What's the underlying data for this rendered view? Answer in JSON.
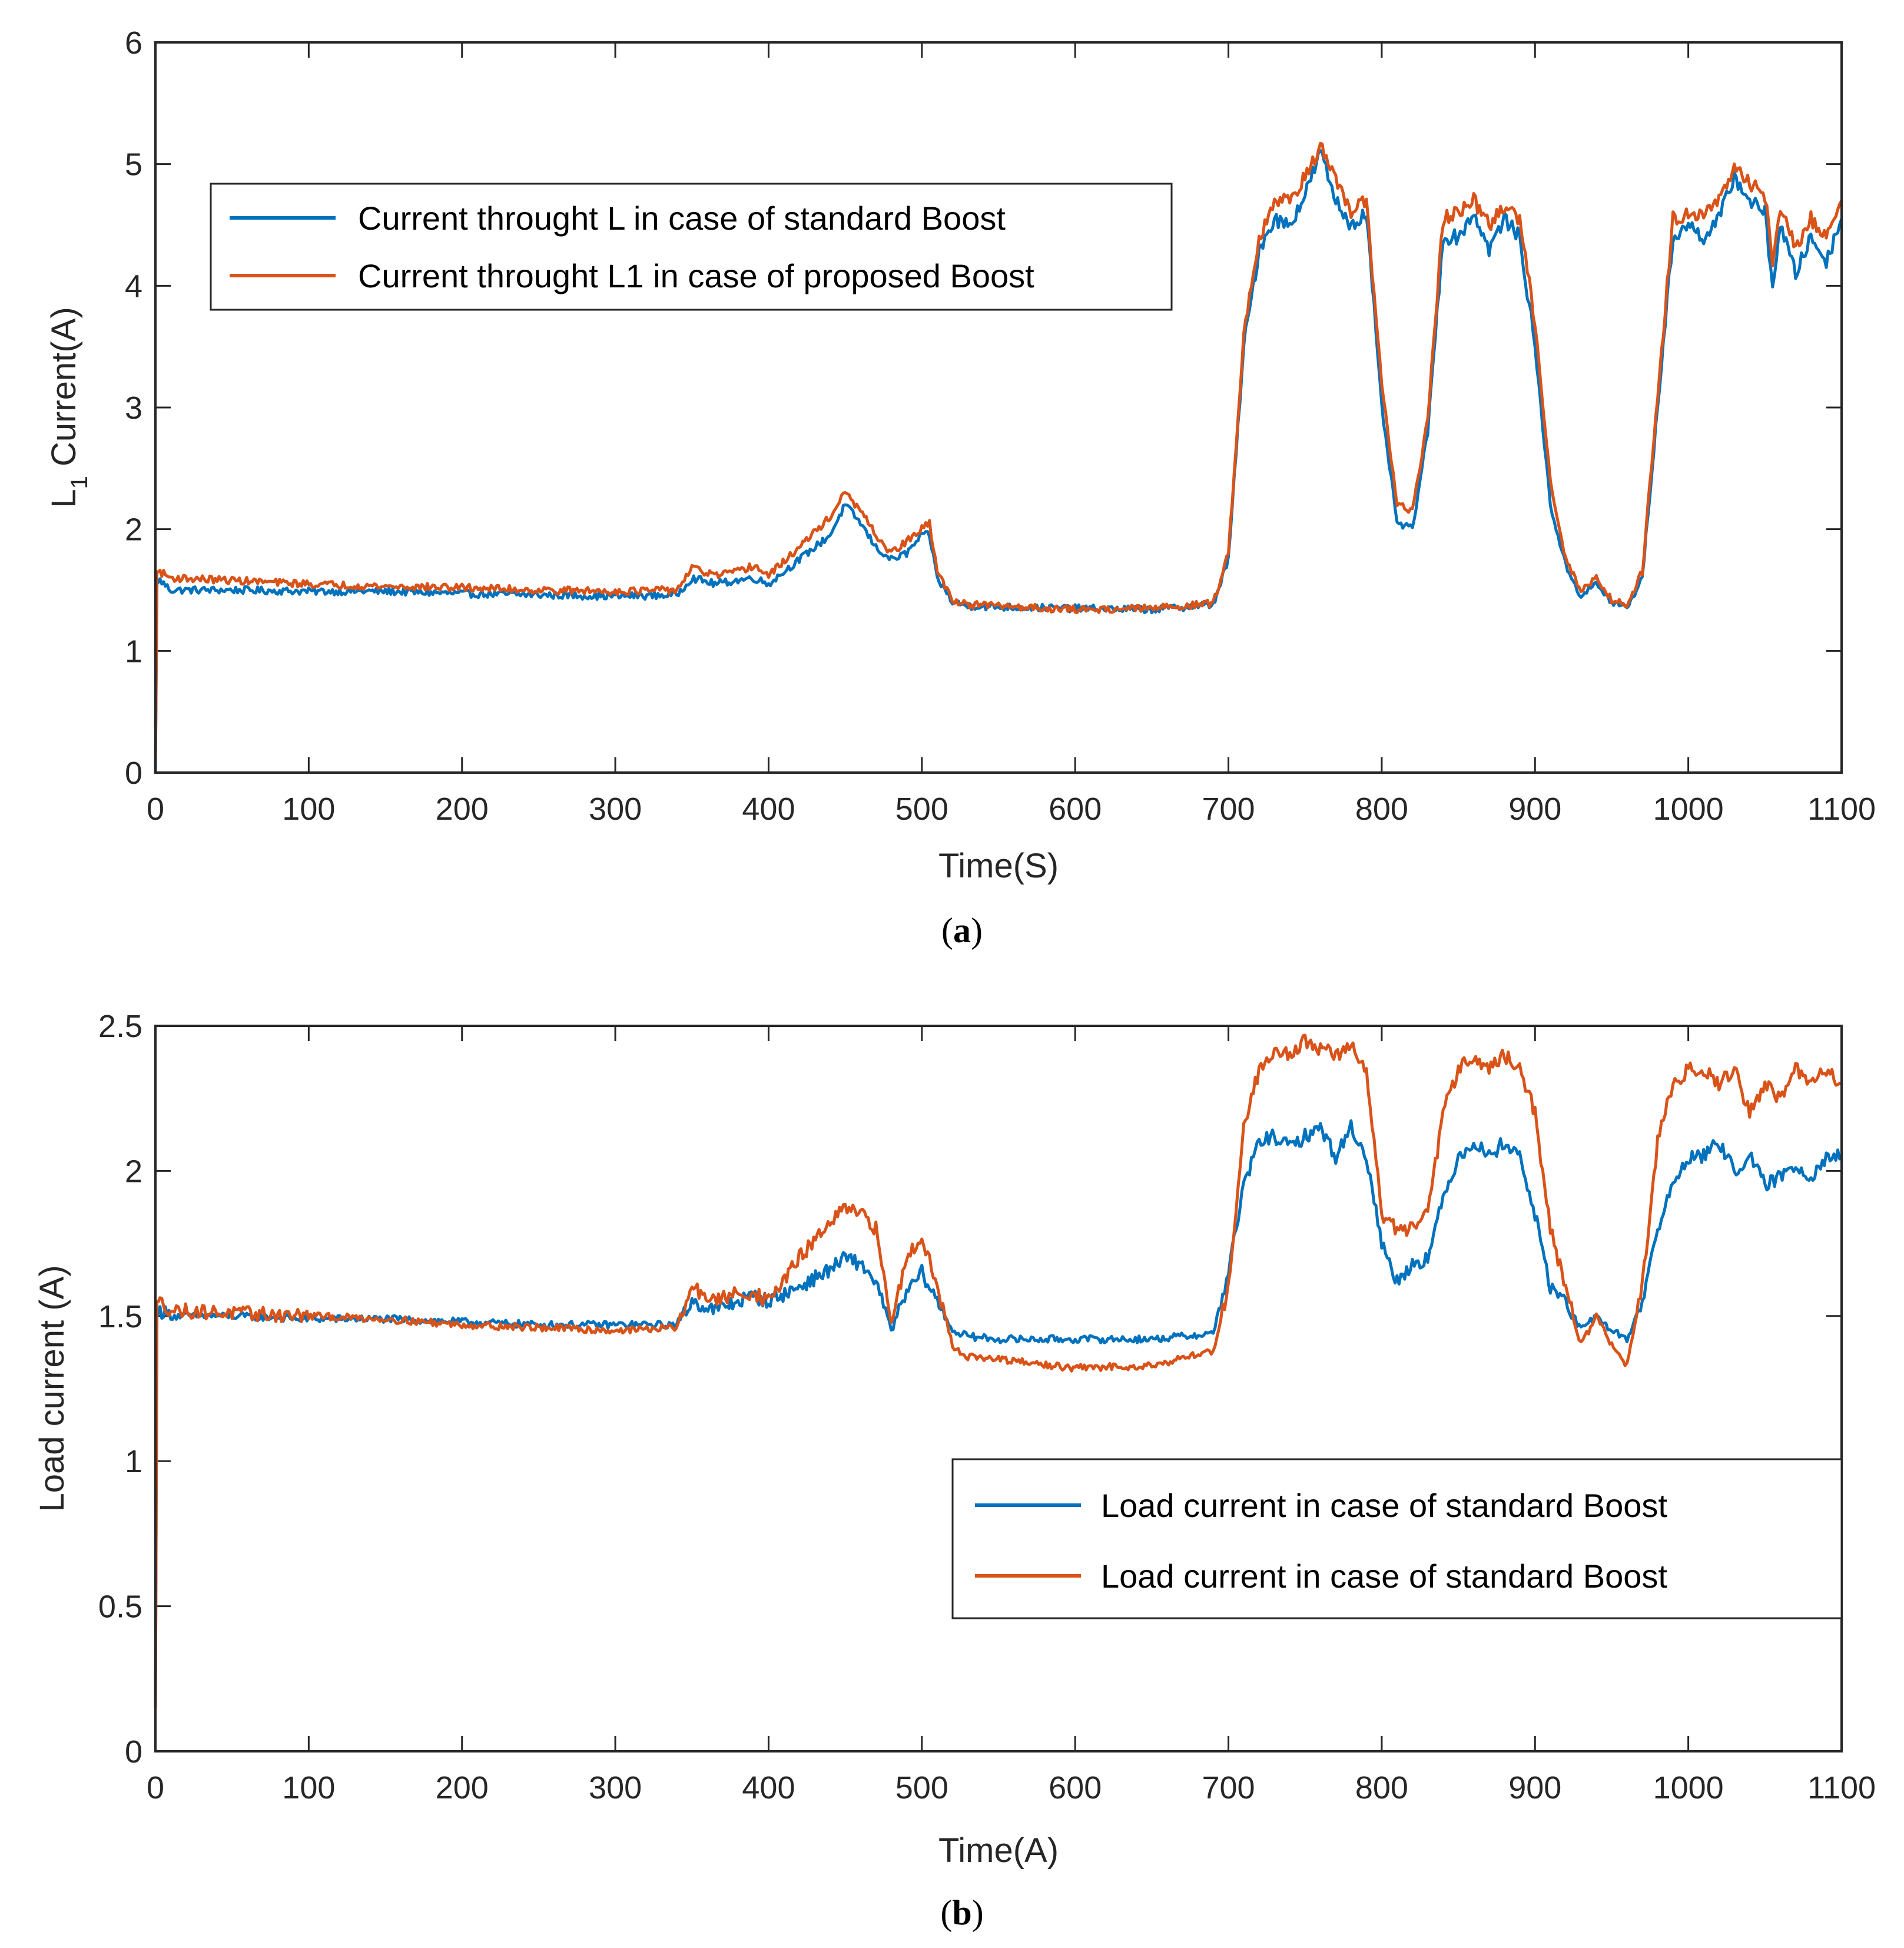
{
  "chart_data": [
    {
      "type": "line",
      "panel": "a",
      "caption_open": "(",
      "caption": "a",
      "caption_close": ")",
      "xlabel": "Time(S)",
      "ylabel_main": "L",
      "ylabel_sub": "1",
      "ylabel_rest": " Current(A)",
      "xlim": [
        0,
        1100
      ],
      "ylim": [
        0,
        6
      ],
      "xticks": [
        0,
        100,
        200,
        300,
        400,
        500,
        600,
        700,
        800,
        900,
        1000,
        1100
      ],
      "yticks": [
        0,
        1,
        2,
        3,
        4,
        5,
        6
      ],
      "legend_position": "top-left",
      "series": [
        {
          "name": "Current throught L in case of standard Boost",
          "color": "#0072BD",
          "x": [
            0,
            1,
            3,
            10,
            50,
            100,
            150,
            200,
            250,
            300,
            340,
            350,
            365,
            380,
            390,
            400,
            420,
            440,
            450,
            460,
            470,
            480,
            490,
            500,
            505,
            510,
            520,
            530,
            550,
            600,
            650,
            690,
            700,
            710,
            720,
            730,
            740,
            750,
            760,
            770,
            780,
            790,
            800,
            810,
            820,
            830,
            840,
            850,
            860,
            870,
            880,
            890,
            900,
            910,
            920,
            930,
            940,
            950,
            960,
            970,
            980,
            990,
            1000,
            1010,
            1020,
            1030,
            1040,
            1050,
            1055,
            1060,
            1070,
            1080,
            1090,
            1100
          ],
          "y": [
            0,
            1.55,
            1.58,
            1.5,
            1.5,
            1.49,
            1.49,
            1.47,
            1.46,
            1.45,
            1.46,
            1.6,
            1.55,
            1.58,
            1.6,
            1.55,
            1.75,
            1.95,
            2.2,
            2.05,
            1.85,
            1.75,
            1.8,
            1.95,
            1.95,
            1.6,
            1.4,
            1.37,
            1.36,
            1.35,
            1.34,
            1.38,
            1.75,
            3.5,
            4.3,
            4.55,
            4.5,
            4.75,
            5.1,
            4.7,
            4.5,
            4.6,
            3.0,
            2.05,
            2.0,
            2.8,
            4.4,
            4.4,
            4.6,
            4.3,
            4.55,
            4.4,
            3.5,
            2.2,
            1.7,
            1.45,
            1.55,
            1.4,
            1.35,
            1.6,
            3.0,
            4.4,
            4.5,
            4.4,
            4.55,
            4.9,
            4.7,
            4.6,
            4.0,
            4.5,
            4.1,
            4.4,
            4.2,
            4.55
          ]
        },
        {
          "name": "Current throught L1 in case of proposed Boost",
          "color": "#D95319",
          "x": [
            0,
            1,
            3,
            10,
            50,
            100,
            150,
            200,
            250,
            300,
            340,
            350,
            365,
            380,
            390,
            400,
            420,
            440,
            450,
            460,
            470,
            480,
            490,
            500,
            505,
            510,
            520,
            530,
            550,
            600,
            650,
            690,
            700,
            710,
            720,
            730,
            740,
            750,
            760,
            770,
            780,
            790,
            800,
            810,
            820,
            830,
            840,
            850,
            860,
            870,
            880,
            890,
            900,
            910,
            920,
            930,
            940,
            950,
            960,
            970,
            980,
            990,
            1000,
            1010,
            1020,
            1030,
            1040,
            1050,
            1055,
            1060,
            1070,
            1080,
            1090,
            1100
          ],
          "y": [
            0.1,
            1.65,
            1.65,
            1.6,
            1.58,
            1.55,
            1.53,
            1.52,
            1.5,
            1.49,
            1.5,
            1.68,
            1.62,
            1.65,
            1.7,
            1.62,
            1.85,
            2.1,
            2.3,
            2.15,
            1.95,
            1.8,
            1.9,
            2.0,
            2.05,
            1.65,
            1.42,
            1.38,
            1.37,
            1.34,
            1.35,
            1.39,
            1.8,
            3.6,
            4.4,
            4.7,
            4.7,
            4.9,
            5.15,
            4.85,
            4.6,
            4.7,
            3.2,
            2.2,
            2.15,
            2.9,
            4.55,
            4.6,
            4.7,
            4.5,
            4.65,
            4.55,
            3.7,
            2.4,
            1.75,
            1.5,
            1.6,
            1.42,
            1.38,
            1.65,
            3.1,
            4.55,
            4.6,
            4.6,
            4.7,
            4.95,
            4.85,
            4.75,
            4.2,
            4.65,
            4.3,
            4.55,
            4.4,
            4.7
          ]
        }
      ]
    },
    {
      "type": "line",
      "panel": "b",
      "caption_open": "(",
      "caption": "b",
      "caption_close": ")",
      "xlabel": "Time(A)",
      "ylabel": "Load current (A)",
      "xlim": [
        0,
        1100
      ],
      "ylim": [
        0,
        2.5
      ],
      "xticks": [
        0,
        100,
        200,
        300,
        400,
        500,
        600,
        700,
        800,
        900,
        1000,
        1100
      ],
      "yticks": [
        0,
        0.5,
        1,
        1.5,
        2,
        2.5
      ],
      "legend_position": "bottom-right",
      "series": [
        {
          "name": "Load current in case of standard Boost",
          "color": "#0072BD",
          "x": [
            0,
            1,
            3,
            10,
            50,
            100,
            150,
            200,
            250,
            300,
            340,
            350,
            365,
            380,
            390,
            400,
            420,
            440,
            450,
            460,
            470,
            480,
            490,
            500,
            510,
            520,
            530,
            550,
            600,
            650,
            690,
            700,
            710,
            720,
            730,
            740,
            750,
            760,
            770,
            780,
            790,
            800,
            810,
            820,
            830,
            840,
            850,
            860,
            870,
            880,
            890,
            900,
            910,
            920,
            930,
            940,
            950,
            960,
            970,
            980,
            990,
            1000,
            1010,
            1020,
            1030,
            1040,
            1050,
            1060,
            1070,
            1080,
            1090,
            1100
          ],
          "y": [
            0.15,
            1.5,
            1.52,
            1.5,
            1.5,
            1.49,
            1.49,
            1.48,
            1.47,
            1.47,
            1.47,
            1.55,
            1.52,
            1.55,
            1.57,
            1.55,
            1.6,
            1.66,
            1.7,
            1.68,
            1.62,
            1.45,
            1.58,
            1.65,
            1.55,
            1.45,
            1.43,
            1.42,
            1.42,
            1.42,
            1.44,
            1.65,
            1.95,
            2.1,
            2.12,
            2.08,
            2.12,
            2.15,
            2.05,
            2.15,
            2.05,
            1.75,
            1.62,
            1.68,
            1.7,
            1.9,
            2.05,
            2.1,
            2.05,
            2.1,
            2.05,
            1.85,
            1.6,
            1.55,
            1.45,
            1.5,
            1.45,
            1.42,
            1.55,
            1.8,
            1.95,
            2.05,
            2.05,
            2.1,
            2.0,
            2.05,
            1.95,
            1.98,
            2.02,
            1.98,
            2.05,
            2.05
          ]
        },
        {
          "name": "Load current in case of standard Boost",
          "color": "#D95319",
          "x": [
            0,
            1,
            3,
            10,
            50,
            100,
            150,
            200,
            250,
            300,
            340,
            350,
            365,
            380,
            390,
            400,
            420,
            440,
            450,
            460,
            470,
            480,
            490,
            500,
            510,
            520,
            530,
            550,
            600,
            650,
            690,
            700,
            710,
            720,
            730,
            740,
            750,
            760,
            770,
            780,
            790,
            800,
            810,
            820,
            830,
            840,
            850,
            860,
            870,
            880,
            890,
            900,
            910,
            920,
            930,
            940,
            950,
            960,
            970,
            980,
            990,
            1000,
            1010,
            1020,
            1030,
            1040,
            1050,
            1060,
            1070,
            1080,
            1090,
            1100
          ],
          "y": [
            0.15,
            1.55,
            1.55,
            1.52,
            1.51,
            1.5,
            1.49,
            1.47,
            1.46,
            1.45,
            1.46,
            1.6,
            1.55,
            1.58,
            1.58,
            1.55,
            1.7,
            1.82,
            1.87,
            1.85,
            1.8,
            1.48,
            1.7,
            1.78,
            1.6,
            1.4,
            1.36,
            1.35,
            1.32,
            1.33,
            1.38,
            1.6,
            2.15,
            2.35,
            2.42,
            2.4,
            2.45,
            2.42,
            2.4,
            2.43,
            2.35,
            1.85,
            1.8,
            1.8,
            1.85,
            2.2,
            2.35,
            2.4,
            2.35,
            2.4,
            2.35,
            2.2,
            1.8,
            1.6,
            1.4,
            1.5,
            1.4,
            1.33,
            1.6,
            2.1,
            2.3,
            2.35,
            2.35,
            2.3,
            2.35,
            2.2,
            2.3,
            2.25,
            2.35,
            2.3,
            2.35,
            2.3
          ]
        }
      ]
    }
  ]
}
